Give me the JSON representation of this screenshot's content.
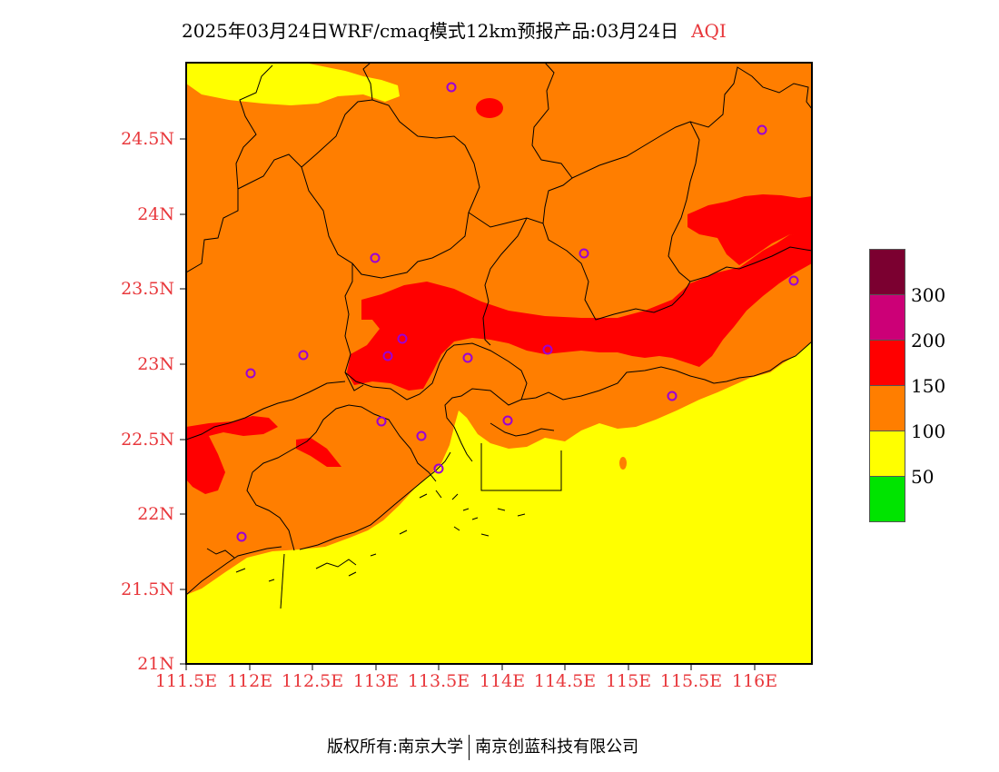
{
  "header": {
    "title": "2025年03月24日WRF/cmaq模式12km预报产品:03月24日",
    "variable": "AQI"
  },
  "axes": {
    "y_ticks": [
      "24.5N",
      "24N",
      "23.5N",
      "23N",
      "22.5N",
      "22N",
      "21.5N",
      "21N"
    ],
    "x_ticks": [
      "111.5E",
      "112E",
      "112.5E",
      "113E",
      "113.5E",
      "114E",
      "114.5E",
      "115E",
      "115.5E",
      "116E"
    ]
  },
  "legend": {
    "labels": [
      "300",
      "200",
      "150",
      "100",
      "50"
    ],
    "colors": [
      "#7b0030",
      "#cc0077",
      "#ff0000",
      "#ff7e00",
      "#ffff00",
      "#00e400"
    ]
  },
  "map_colors": {
    "good": "#00e400",
    "moderate": "#ffff00",
    "usg": "#ff7e00",
    "unhealthy": "#ff0000",
    "marker": "#9b00d6"
  },
  "footer": {
    "left": "版权所有:南京大学",
    "right": "南京创蓝科技有限公司"
  }
}
